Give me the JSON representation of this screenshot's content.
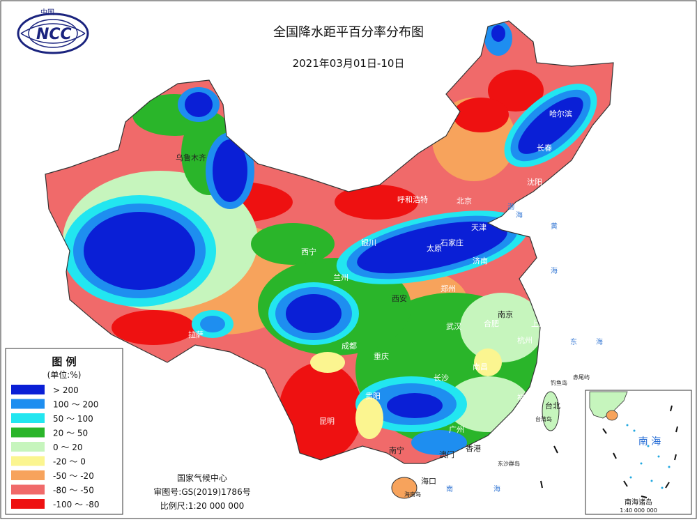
{
  "header": {
    "title": "全国降水距平百分率分布图",
    "date": "2021年03月01日-10日",
    "logo_top": "中国",
    "logo_text": "NCC"
  },
  "legend": {
    "title": "图  例",
    "unit": "(单位:%)",
    "items": [
      {
        "label": "> 200",
        "color": "#0a1fd6"
      },
      {
        "label": "100 ～ 200",
        "color": "#1e8ef0"
      },
      {
        "label": "50 ～ 100",
        "color": "#22e6f0"
      },
      {
        "label": "20 ～ 50",
        "color": "#2ab52a"
      },
      {
        "label": "0 ～ 20",
        "color": "#c6f5bd"
      },
      {
        "label": "-20 ～ 0",
        "color": "#fbf590"
      },
      {
        "label": "-50 ～ -20",
        "color": "#f7a35c"
      },
      {
        "label": "-80 ～ -50",
        "color": "#f06a6a"
      },
      {
        "label": "-100 ～ -80",
        "color": "#ee1111"
      }
    ]
  },
  "footer": {
    "org": "国家气候中心",
    "review": "审图号:GS(2019)1786号",
    "scale": "比例尺:1:20 000 000"
  },
  "cities": {
    "urumqi": "乌鲁木齐",
    "harbin": "哈尔滨",
    "changchun": "长春",
    "shenyang": "沈阳",
    "hohhot": "呼和浩特",
    "beijing": "北京",
    "tianjin": "天津",
    "shijiazhuang": "石家庄",
    "yinchuan": "银川",
    "taiyuan": "太原",
    "jinan": "济南",
    "xining": "西宁",
    "lanzhou": "兰州",
    "zhengzhou": "郑州",
    "xian": "西安",
    "nanjing": "南京",
    "hefei": "合肥",
    "shanghai": "上海",
    "wuhan": "武汉",
    "hangzhou": "杭州",
    "lhasa": "拉萨",
    "chengdu": "成都",
    "chongqing": "重庆",
    "nanchang": "南昌",
    "changsha": "长沙",
    "fuzhou": "福州",
    "guiyang": "贵阳",
    "taibei": "台北",
    "kunming": "昆明",
    "guangzhou": "广州",
    "nanning": "南宁",
    "aomen": "澳门",
    "xianggang": "香港",
    "haikou": "海口"
  },
  "seas": {
    "bohai": "渤",
    "bohai2": "海",
    "yellow": "黄",
    "yellow2": "海",
    "east": "东",
    "east2": "海",
    "south": "南",
    "south2": "海",
    "chiwei": "赤尾屿",
    "diaoyu": "钓鱼岛",
    "taiwan_island": "台湾岛",
    "hainan_island": "海南岛",
    "dongsha": "东沙群岛"
  },
  "inset": {
    "sea_label": "南 海",
    "title": "南海诸岛",
    "scale": "1:40 000 000"
  }
}
